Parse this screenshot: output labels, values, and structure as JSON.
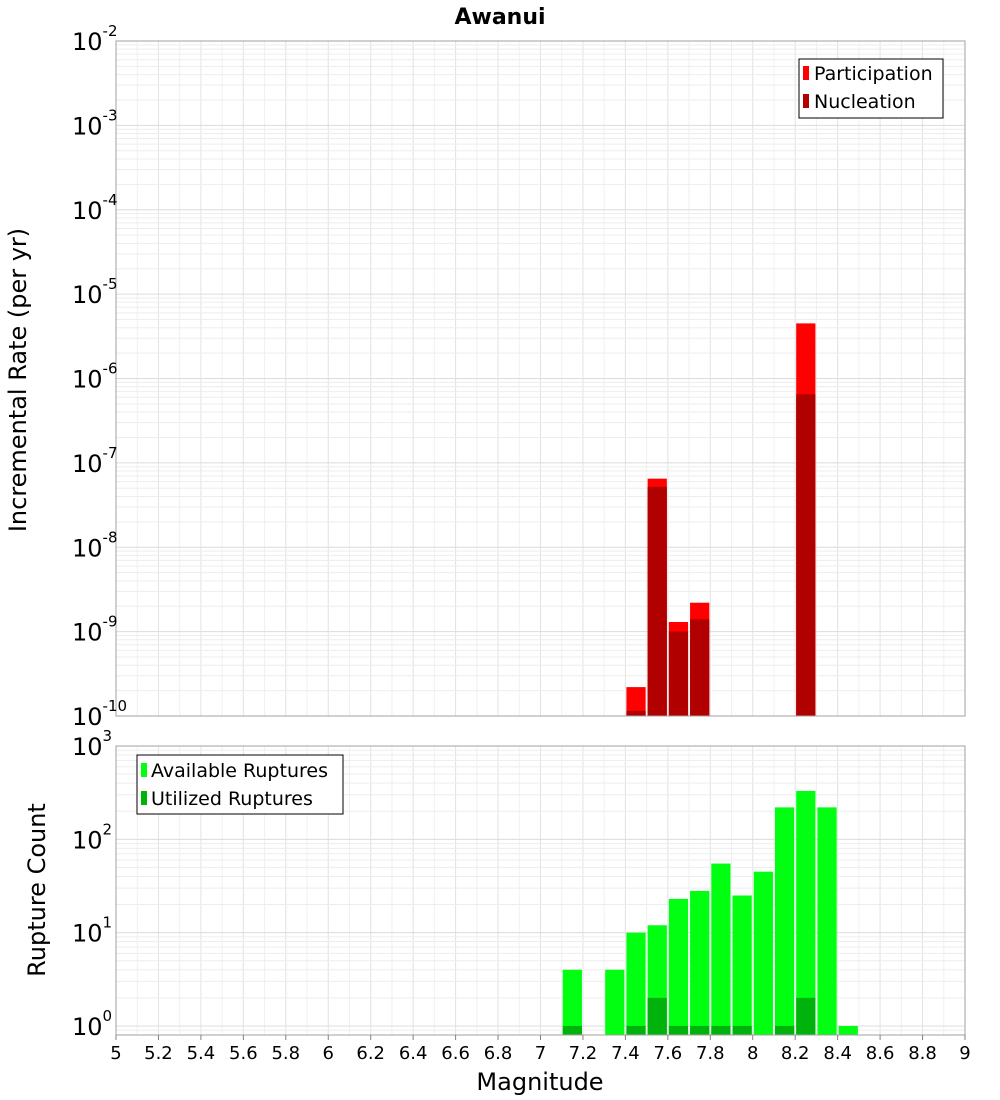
{
  "chart_data": [
    {
      "type": "bar",
      "title": "Awanui",
      "xlabel": "",
      "ylabel": "Incremental Rate (per yr)",
      "xlim": [
        5,
        9
      ],
      "ylim": [
        1e-10,
        0.01
      ],
      "yscale": "log",
      "y_ticks": [
        {
          "base": "10",
          "exp": "-10",
          "value": 1e-10
        },
        {
          "base": "10",
          "exp": "-9",
          "value": 1e-09
        },
        {
          "base": "10",
          "exp": "-8",
          "value": 1e-08
        },
        {
          "base": "10",
          "exp": "-7",
          "value": 1e-07
        },
        {
          "base": "10",
          "exp": "-6",
          "value": 1e-06
        },
        {
          "base": "10",
          "exp": "-5",
          "value": 1e-05
        },
        {
          "base": "10",
          "exp": "-4",
          "value": 0.0001
        },
        {
          "base": "10",
          "exp": "-3",
          "value": 0.001
        },
        {
          "base": "10",
          "exp": "-2",
          "value": 0.01
        }
      ],
      "grid": true,
      "legend_position": "top-right",
      "bar_width": 0.1,
      "series": [
        {
          "name": "Participation",
          "color": "#ff0000",
          "x": [
            7.45,
            7.55,
            7.65,
            7.75,
            8.25
          ],
          "values": [
            2.2e-10,
            6.5e-08,
            1.3e-09,
            2.2e-09,
            4.5e-06
          ]
        },
        {
          "name": "Nucleation",
          "color": "#b00000",
          "x": [
            7.45,
            7.55,
            7.65,
            7.75,
            8.25
          ],
          "values": [
            1.15e-10,
            5.2e-08,
            1e-09,
            1.4e-09,
            6.5e-07
          ]
        }
      ]
    },
    {
      "type": "bar",
      "title": "",
      "xlabel": "Magnitude",
      "ylabel": "Rupture Count",
      "xlim": [
        5,
        9
      ],
      "ylim": [
        0.8,
        1000
      ],
      "yscale": "log",
      "y_ticks": [
        {
          "base": "10",
          "exp": "0",
          "value": 1
        },
        {
          "base": "10",
          "exp": "1",
          "value": 10
        },
        {
          "base": "10",
          "exp": "2",
          "value": 100
        },
        {
          "base": "10",
          "exp": "3",
          "value": 1000
        }
      ],
      "x_ticks": [
        "5",
        "5.2",
        "5.4",
        "5.6",
        "5.8",
        "6",
        "6.2",
        "6.4",
        "6.6",
        "6.8",
        "7",
        "7.2",
        "7.4",
        "7.6",
        "7.8",
        "8",
        "8.2",
        "8.4",
        "8.6",
        "8.8",
        "9"
      ],
      "grid": true,
      "legend_position": "top-left",
      "bar_width": 0.1,
      "series": [
        {
          "name": "Available Ruptures",
          "color": "#00ff11",
          "x": [
            7.15,
            7.35,
            7.45,
            7.55,
            7.65,
            7.75,
            7.85,
            7.95,
            8.05,
            8.15,
            8.25,
            8.35,
            8.45
          ],
          "values": [
            4,
            4,
            10,
            12,
            23,
            28,
            55,
            25,
            45,
            220,
            330,
            220,
            1
          ]
        },
        {
          "name": "Utilized Ruptures",
          "color": "#00b30c",
          "x": [
            7.15,
            7.45,
            7.55,
            7.65,
            7.75,
            7.85,
            7.95,
            8.15,
            8.25
          ],
          "values": [
            1,
            1,
            2,
            1,
            1,
            1,
            1,
            1,
            2
          ]
        }
      ]
    }
  ]
}
